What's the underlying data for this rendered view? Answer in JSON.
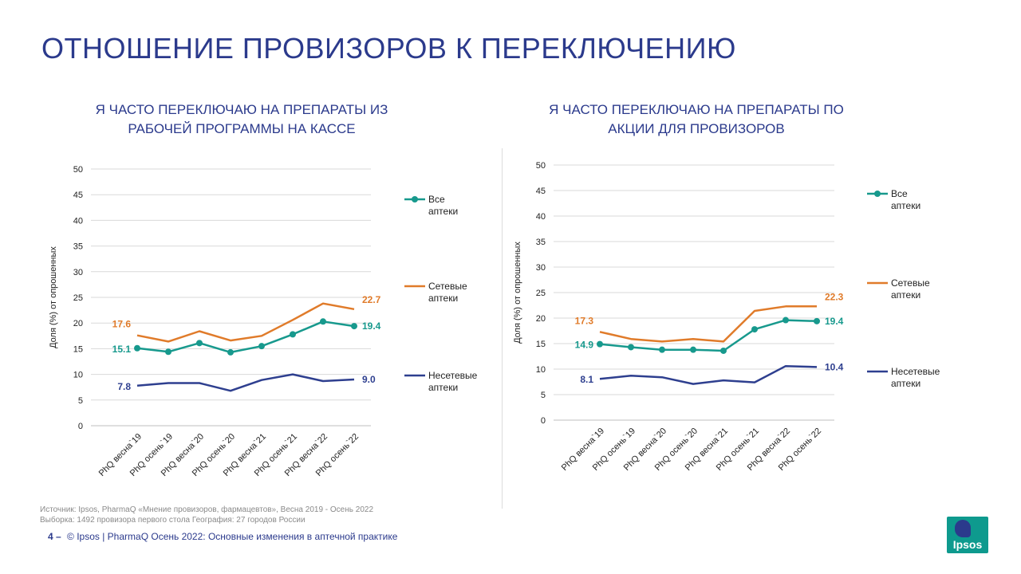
{
  "page_title": "ОТНОШЕНИЕ ПРОВИЗОРОВ К ПЕРЕКЛЮЧЕНИЮ",
  "colors": {
    "title": "#2b3a8c",
    "teal": "#17998d",
    "orange": "#e07b2a",
    "navy": "#2e3f8f",
    "grid": "#d9d9d9"
  },
  "source": {
    "line1": "Источник: Ipsos, PharmaQ «Мнение  провизоров, фармацевтов», Весна 2019 - Осень 2022",
    "line2": "Выборка: 1492 провизора первого стола  География: 27 городов России"
  },
  "footer": {
    "page_number": "4 –",
    "text": "© Ipsos | PharmaQ Осень 2022: Основные изменения в аптечной практике"
  },
  "logo": {
    "text": "Ipsos"
  },
  "chart_data": [
    {
      "type": "line",
      "title_lines": [
        "Я ЧАСТО ПЕРЕКЛЮЧАЮ НА ПРЕПАРАТЫ ИЗ",
        "РАБОЧЕЙ ПРОГРАММЫ НА КАССЕ"
      ],
      "ylabel": "Доля (%) от опрошенных",
      "ylim": [
        0,
        50
      ],
      "yticks": [
        0,
        5,
        10,
        15,
        20,
        25,
        30,
        35,
        40,
        45,
        50
      ],
      "grid": true,
      "legend_position": "right",
      "categories": [
        "PhQ весна`19",
        "PhQ осень`19",
        "PhQ весна`20",
        "PhQ осень`20",
        "PhQ весна`21",
        "PhQ осень`21",
        "PhQ весна`22",
        "PhQ осень`22"
      ],
      "series": [
        {
          "name": "Все аптеки",
          "color": "#17998d",
          "markers": true,
          "values": [
            15.1,
            14.4,
            16.1,
            14.3,
            15.5,
            17.8,
            20.3,
            19.4
          ],
          "labels": {
            "first": "15.1",
            "last": "19.4"
          }
        },
        {
          "name": "Сетевые аптеки",
          "color": "#e07b2a",
          "markers": false,
          "values": [
            17.6,
            16.4,
            18.4,
            16.6,
            17.5,
            20.6,
            23.8,
            22.7
          ],
          "labels": {
            "first": "17.6",
            "last": "22.7"
          }
        },
        {
          "name": "Несетевые аптеки",
          "color": "#2e3f8f",
          "markers": false,
          "values": [
            7.8,
            8.3,
            8.3,
            6.8,
            8.9,
            10.0,
            8.7,
            9.0
          ],
          "labels": {
            "first": "7.8",
            "last": "9.0"
          }
        }
      ]
    },
    {
      "type": "line",
      "title_lines": [
        "Я ЧАСТО ПЕРЕКЛЮЧАЮ НА ПРЕПАРАТЫ ПО",
        "АКЦИИ ДЛЯ ПРОВИЗОРОВ"
      ],
      "ylabel": "Доля (%) от опрошенных",
      "ylim": [
        0,
        50
      ],
      "yticks": [
        0,
        5,
        10,
        15,
        20,
        25,
        30,
        35,
        40,
        45,
        50
      ],
      "grid": true,
      "legend_position": "right",
      "categories": [
        "PhQ весна`19",
        "PhQ осень`19",
        "PhQ весна`20",
        "PhQ осень`20",
        "PhQ весна`21",
        "PhQ осень`21",
        "PhQ весна`22",
        "PhQ осень`22"
      ],
      "series": [
        {
          "name": "Все аптеки",
          "color": "#17998d",
          "markers": true,
          "values": [
            14.9,
            14.3,
            13.8,
            13.8,
            13.6,
            17.8,
            19.6,
            19.4
          ],
          "labels": {
            "first": "14.9",
            "last": "19.4"
          }
        },
        {
          "name": "Сетевые аптеки",
          "color": "#e07b2a",
          "markers": false,
          "values": [
            17.3,
            15.9,
            15.4,
            15.9,
            15.4,
            21.4,
            22.3,
            22.3
          ],
          "labels": {
            "first": "17.3",
            "last": "22.3"
          }
        },
        {
          "name": "Несетевые аптеки",
          "color": "#2e3f8f",
          "markers": false,
          "values": [
            8.1,
            8.7,
            8.4,
            7.1,
            7.8,
            7.4,
            10.6,
            10.4
          ],
          "labels": {
            "first": "8.1",
            "last": "10.4"
          }
        }
      ]
    }
  ]
}
